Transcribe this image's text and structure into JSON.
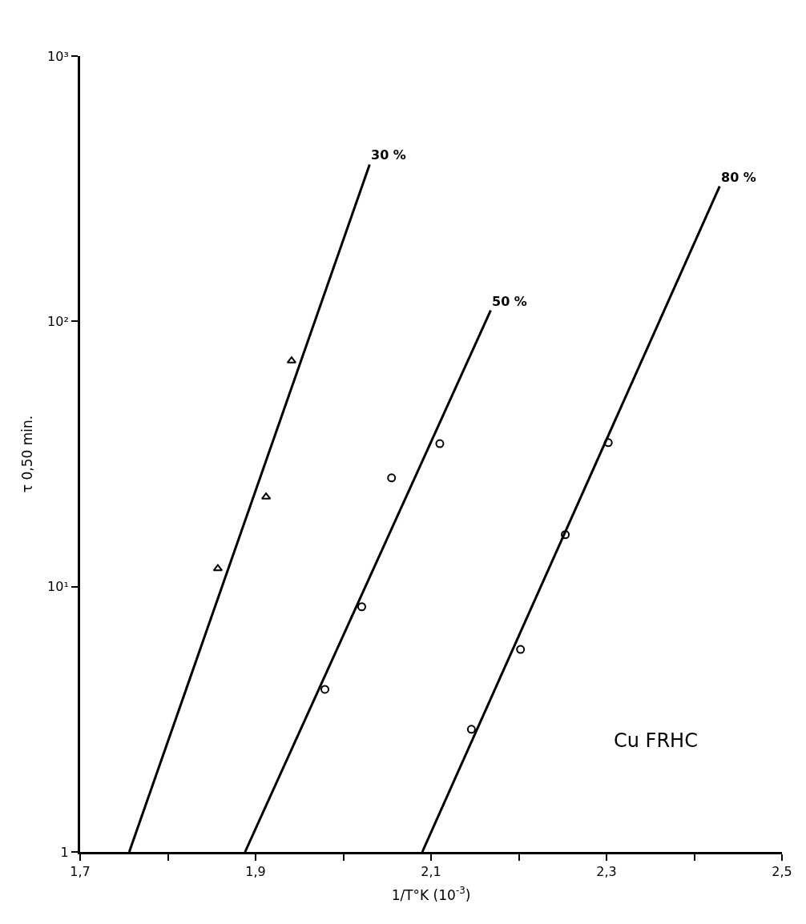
{
  "chart_data": {
    "type": "scatter",
    "xlabel": "1/T°K (10$^{-3}$)",
    "ylabel": "τ 0,50 min.",
    "log": "y",
    "xlim": [
      1.7,
      2.5
    ],
    "xticks": [
      {
        "value": 1.7,
        "label": "1,7"
      },
      {
        "value": 1.8,
        "label": null
      },
      {
        "value": 1.9,
        "label": "1,9"
      },
      {
        "value": 2.0,
        "label": null
      },
      {
        "value": 2.1,
        "label": "2,1"
      },
      {
        "value": 2.2,
        "label": null
      },
      {
        "value": 2.3,
        "label": "2,3"
      },
      {
        "value": 2.4,
        "label": null
      },
      {
        "value": 2.5,
        "label": "2,5"
      }
    ],
    "ylim": [
      1,
      1000
    ],
    "yticks": [
      1,
      {
        "value": 10,
        "label": "10¹"
      },
      {
        "value": 100,
        "label": "10²"
      },
      {
        "value": 1000,
        "label": "10³"
      }
    ],
    "series": [
      {
        "marker": "triangle",
        "color": "#000000",
        "x": [
          1.857,
          1.912,
          1.941
        ],
        "values": [
          11.7,
          21.8,
          71
        ]
      },
      {
        "marker": "circle",
        "color": "#000000",
        "x": [
          1.979,
          2.021,
          2.055,
          2.11
        ],
        "values": [
          4.1,
          8.4,
          25.7,
          34.6
        ]
      },
      {
        "marker": "circle",
        "color": "#000000",
        "x": [
          2.146,
          2.202,
          2.253,
          2.302
        ],
        "values": [
          2.9,
          5.8,
          15.7,
          34.9
        ]
      },
      {
        "type": "line",
        "color": "#000000",
        "x": [
          1.756,
          2.03
        ],
        "values": [
          1,
          390
        ]
      },
      {
        "type": "line",
        "color": "#000000",
        "x": [
          1.888,
          2.168
        ],
        "values": [
          1,
          110
        ]
      },
      {
        "type": "line",
        "color": "#000000",
        "x": [
          2.09,
          2.429
        ],
        "values": [
          1,
          323
        ]
      }
    ],
    "annotations": [
      {
        "text": "30 %",
        "x": 2.03,
        "y": 390
      },
      {
        "text": "50 %",
        "x": 2.168,
        "y": 110
      },
      {
        "text": "80 %",
        "x": 2.429,
        "y": 323
      },
      "Cu FRHC"
    ]
  }
}
